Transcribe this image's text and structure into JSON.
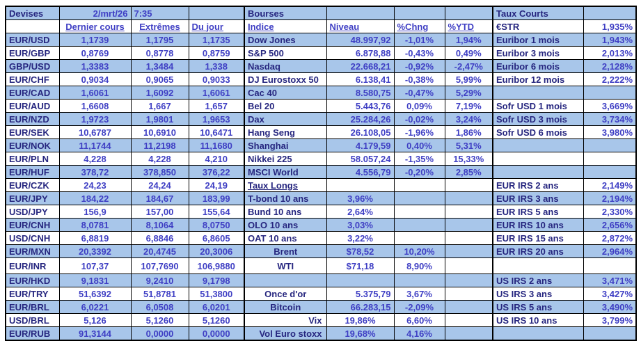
{
  "meta": {
    "date": "2/mrt/26",
    "time": "7:35"
  },
  "colors": {
    "shaded_row": "#a8c6ea",
    "label_text": "#26267f",
    "value_text": "#3f3fc4",
    "border": "#000000"
  },
  "sections": {
    "devises_title": "Devises",
    "bourses_title": "Bourses",
    "taux_courts_title": "Taux Courts",
    "taux_longs_title": "Taux Longs"
  },
  "grid": {
    "rows": [
      [
        {
          "t": "Devises",
          "n": "devises-section-title"
        },
        {
          "t": "2/mrt/26",
          "cls": "rt",
          "n": "report-date"
        },
        {
          "t": "7:35",
          "cls": "lf",
          "n": "report-time"
        },
        "",
        {
          "t": "Bourses",
          "n": "bourses-section-title"
        },
        "",
        "",
        "",
        {
          "t": "Taux Courts",
          "n": "taux-courts-section-title"
        },
        ""
      ],
      [
        "",
        {
          "t": "Dernier cours",
          "cls": "ctr und",
          "n": "col-header-dernier-cours"
        },
        {
          "t": "Extrêmes",
          "cls": "ctr und",
          "n": "col-header-extremes"
        },
        {
          "t": "Du jour",
          "cls": "lf und",
          "n": "col-header-du-jour"
        },
        {
          "t": "Indice",
          "cls": "lf und",
          "n": "col-header-indice"
        },
        {
          "t": "Niveau",
          "cls": "lf und",
          "n": "col-header-niveau"
        },
        {
          "t": "%Chng",
          "cls": "lf und",
          "n": "col-header-chng"
        },
        {
          "t": "%YTD",
          "cls": "lf und",
          "n": "col-header-ytd"
        },
        {
          "t": "€STR",
          "n": "rate-name"
        },
        {
          "t": "1,935%",
          "n": "rate-value"
        }
      ],
      [
        "EUR/USD",
        "1,1739",
        "1,1795",
        "1,1735",
        "Dow Jones",
        "48.997,92",
        "-1,01%",
        "1,94%",
        "Euribor 1 mois",
        "1,943%"
      ],
      [
        "EUR/GBP",
        "0,8769",
        "0,8778",
        "0,8759",
        "S&P 500",
        "6.878,88",
        "-0,43%",
        "0,49%",
        "Euribor 3 mois",
        "2,013%"
      ],
      [
        "GBP/USD",
        "1,3383",
        "1,3484",
        "1,338",
        "Nasdaq",
        "22.668,21",
        "-0,92%",
        "-2,47%",
        "Euribor 6 mois",
        "2,128%"
      ],
      [
        "EUR/CHF",
        "0,9034",
        "0,9065",
        "0,9033",
        "DJ Eurostoxx 50",
        "6.138,41",
        "-0,38%",
        "5,99%",
        "Euribor 12 mois",
        "2,222%"
      ],
      [
        "EUR/CAD",
        "1,6061",
        "1,6092",
        "1,6061",
        "Cac 40",
        "8.580,75",
        "-0,47%",
        "5,29%",
        "",
        ""
      ],
      [
        "EUR/AUD",
        "1,6608",
        "1,667",
        "1,657",
        "Bel 20",
        "5.443,76",
        "0,09%",
        "7,19%",
        "Sofr USD 1 mois",
        "3,669%"
      ],
      [
        "EUR/NZD",
        "1,9723",
        "1,9801",
        "1,9653",
        "Dax",
        "25.284,26",
        "-0,02%",
        "3,24%",
        "Sofr USD 3 mois",
        "3,734%"
      ],
      [
        "EUR/SEK",
        "10,6787",
        "10,6910",
        "10,6471",
        "Hang Seng",
        "26.108,05",
        "-1,96%",
        "1,86%",
        "Sofr USD 6 mois",
        "3,980%"
      ],
      [
        "EUR/NOK",
        "11,1744",
        "11,2198",
        "11,1680",
        "Shanghai",
        "4.179,59",
        "0,40%",
        "5,31%",
        "",
        ""
      ],
      [
        "EUR/PLN",
        "4,228",
        "4,228",
        "4,210",
        "Nikkei 225",
        "58.057,24",
        "-1,35%",
        "15,33%",
        "",
        ""
      ],
      [
        "EUR/HUF",
        "378,72",
        "378,850",
        "376,22",
        "MSCI World",
        "4.556,79",
        "-0,20%",
        "2,85%",
        "",
        ""
      ],
      [
        "EUR/CZK",
        "24,23",
        "24,24",
        "24,19",
        {
          "t": "Taux Longs",
          "cls": "lbl und",
          "n": "taux-longs-section-title"
        },
        "",
        "",
        "",
        "EUR IRS 2 ans",
        "2,149%"
      ],
      [
        "EUR/JPY",
        "184,22",
        "184,67",
        "183,99",
        "T-bond 10 ans",
        {
          "t": "3,96%",
          "cls": "ctr",
          "n": "bond-yield"
        },
        "",
        "",
        "EUR IRS 3 ans",
        "2,194%"
      ],
      [
        "USD/JPY",
        "156,9",
        "157,00",
        "155,64",
        "Bund 10 ans",
        {
          "t": "2,64%",
          "cls": "ctr",
          "n": "bond-yield"
        },
        "",
        "",
        "EUR IRS 5 ans",
        "2,330%"
      ],
      [
        "EUR/CNH",
        "8,0781",
        "8,1064",
        "8,0750",
        "OLO 10 ans",
        {
          "t": "3,03%",
          "cls": "ctr",
          "n": "bond-yield"
        },
        "",
        "",
        "EUR IRS 10 ans",
        "2,656%"
      ],
      [
        "USD/CNH",
        "6,8819",
        "6,8846",
        "6,8605",
        "OAT 10 ans",
        {
          "t": "3,22%",
          "cls": "ctr",
          "n": "bond-yield"
        },
        "",
        "",
        "EUR IRS 15 ans",
        "2,872%"
      ],
      [
        "EUR/MXN",
        "20,3392",
        "20,4745",
        "20,3006",
        {
          "t": "Brent",
          "cls": "lblc",
          "n": "commodity-name"
        },
        {
          "t": "$78,52",
          "cls": "ctr",
          "n": "commodity-price"
        },
        "10,20%",
        "",
        "EUR IRS 20 ans",
        "2,964%"
      ],
      [
        "EUR/INR",
        "107,37",
        "107,7690",
        "106,9880",
        {
          "t": "WTI",
          "cls": "lblc",
          "n": "commodity-name"
        },
        {
          "t": "$71,18",
          "cls": "ctr",
          "n": "commodity-price"
        },
        "8,90%",
        "",
        "",
        ""
      ],
      [
        "EUR/HKD",
        "9,1831",
        "9,2410",
        "9,1798",
        "",
        "",
        "",
        "",
        "US IRS 2 ans",
        "3,471%"
      ],
      [
        "EUR/TRY",
        "51,6392",
        "51,8781",
        "51,3800",
        {
          "t": "Once d'or",
          "cls": "lblc",
          "n": "commodity-name"
        },
        "5.375,79",
        "3,67%",
        "",
        "US IRS 3 ans",
        "3,427%"
      ],
      [
        "EUR/BRL",
        "6,0221",
        "6,0508",
        "6,0201",
        {
          "t": "Bitcoin",
          "cls": "lblc",
          "n": "commodity-name"
        },
        "66.283,15",
        "-2,09%",
        "",
        "US IRS 5 ans",
        "3,490%"
      ],
      [
        "USD/BRL",
        "5,126",
        "5,1260",
        "5,1260",
        {
          "t": "Vix",
          "cls": "lblr",
          "n": "index-name"
        },
        {
          "t": "19,86%",
          "cls": "ctr",
          "n": "index-level"
        },
        "6,60%",
        "",
        "US IRS 10 ans",
        "3,799%"
      ],
      [
        "EUR/RUB",
        "91,3144",
        "0,0000",
        "0,0000",
        {
          "t": "Vol Euro stoxx",
          "cls": "lblr",
          "n": "index-name"
        },
        {
          "t": "19,68%",
          "cls": "ctr",
          "n": "index-level"
        },
        "4,16%",
        "",
        "",
        ""
      ]
    ]
  }
}
